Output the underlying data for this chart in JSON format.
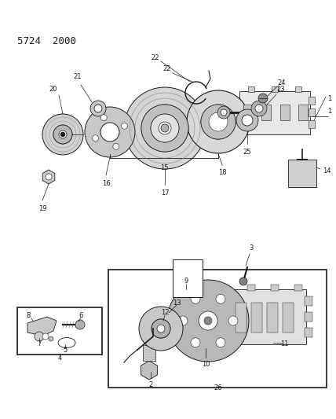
{
  "title": "5724  2000",
  "background_color": "#ffffff",
  "line_color": "#1a1a1a",
  "fig_width": 4.28,
  "fig_height": 5.33,
  "dpi": 100,
  "gray_light": "#c8c8c8",
  "gray_mid": "#a0a0a0",
  "gray_dark": "#707070",
  "label_fontsize": 6.0,
  "title_fontsize": 9
}
